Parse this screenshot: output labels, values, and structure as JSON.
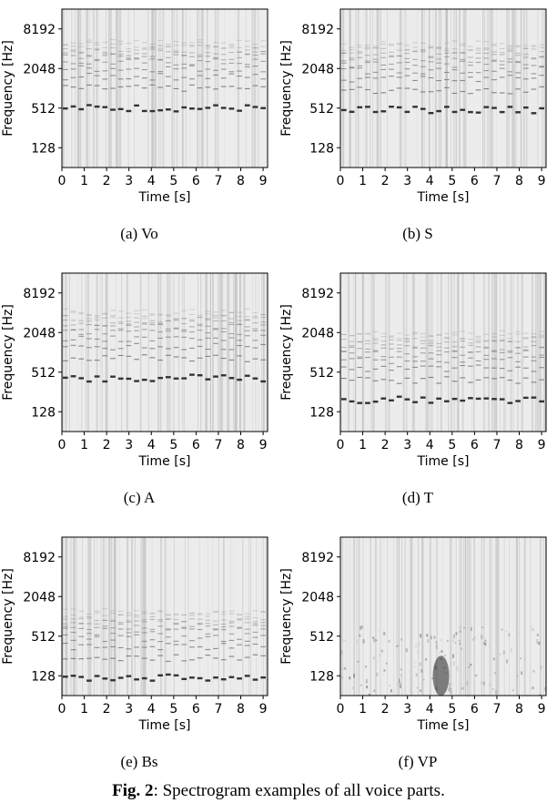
{
  "figure": {
    "label": "Fig. 2",
    "caption": ": Spectrogram examples of all voice parts."
  },
  "axes": {
    "xlabel": "Time [s]",
    "ylabel": "Frequency [Hz]",
    "xticks": [
      "0",
      "1",
      "2",
      "3",
      "4",
      "5",
      "6",
      "7",
      "8",
      "9"
    ],
    "yticks": [
      "8192",
      "2048",
      "512",
      "128"
    ]
  },
  "panels": [
    {
      "caption": "(a) Vo"
    },
    {
      "caption": "(b) S"
    },
    {
      "caption": "(c) A"
    },
    {
      "caption": "(d) T"
    },
    {
      "caption": "(e) Bs"
    },
    {
      "caption": "(f) VP"
    }
  ],
  "chart_data": [
    {
      "type": "heatmap",
      "title": "(a) Vo",
      "xlabel": "Time [s]",
      "ylabel": "Frequency [Hz]",
      "xlim": [
        0,
        9.2
      ],
      "y_scale": "log2",
      "ylim": [
        64,
        16384
      ],
      "yticks": [
        128,
        512,
        2048,
        8192
      ]
    },
    {
      "type": "heatmap",
      "title": "(b) S",
      "xlabel": "Time [s]",
      "ylabel": "Frequency [Hz]",
      "xlim": [
        0,
        9.2
      ],
      "y_scale": "log2",
      "ylim": [
        64,
        16384
      ],
      "yticks": [
        128,
        512,
        2048,
        8192
      ]
    },
    {
      "type": "heatmap",
      "title": "(c) A",
      "xlabel": "Time [s]",
      "ylabel": "Frequency [Hz]",
      "xlim": [
        0,
        9.2
      ],
      "y_scale": "log2",
      "ylim": [
        64,
        16384
      ],
      "yticks": [
        128,
        512,
        2048,
        8192
      ]
    },
    {
      "type": "heatmap",
      "title": "(d) T",
      "xlabel": "Time [s]",
      "ylabel": "Frequency [Hz]",
      "xlim": [
        0,
        9.2
      ],
      "y_scale": "log2",
      "ylim": [
        64,
        16384
      ],
      "yticks": [
        128,
        512,
        2048,
        8192
      ]
    },
    {
      "type": "heatmap",
      "title": "(e) Bs",
      "xlabel": "Time [s]",
      "ylabel": "Frequency [Hz]",
      "xlim": [
        0,
        9.2
      ],
      "y_scale": "log2",
      "ylim": [
        64,
        16384
      ],
      "yticks": [
        128,
        512,
        2048,
        8192
      ]
    },
    {
      "type": "heatmap",
      "title": "(f) VP",
      "xlabel": "Time [s]",
      "ylabel": "Frequency [Hz]",
      "xlim": [
        0,
        9.2
      ],
      "y_scale": "log2",
      "ylim": [
        64,
        16384
      ],
      "yticks": [
        128,
        512,
        2048,
        8192
      ]
    }
  ]
}
